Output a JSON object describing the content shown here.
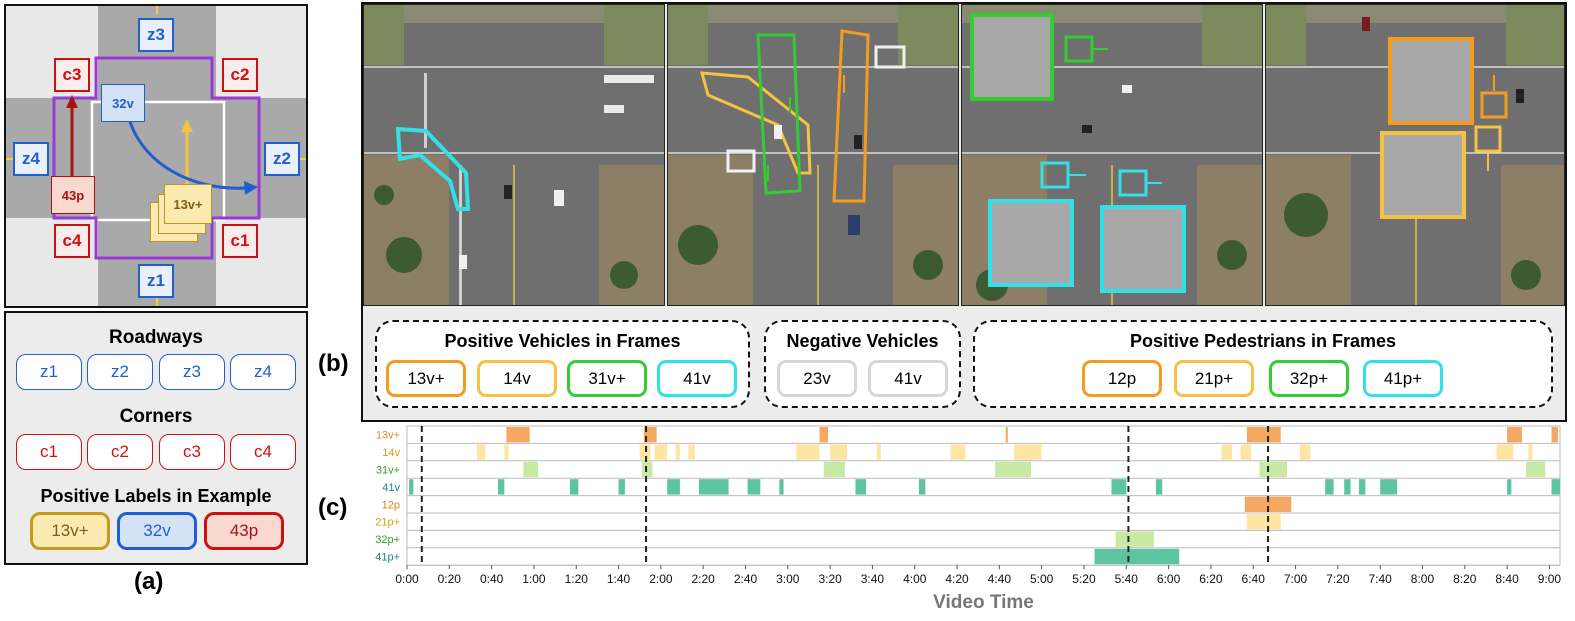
{
  "panel_a": {
    "zones": [
      "z3",
      "z4",
      "z2",
      "z1"
    ],
    "corners": [
      "c3",
      "c2",
      "c4",
      "c1"
    ],
    "marker_32v": "32v",
    "marker_43p": "43p",
    "marker_13v": "13v+",
    "legend": {
      "roadways_title": "Roadways",
      "roadways": [
        "z1",
        "z2",
        "z3",
        "z4"
      ],
      "corners_title": "Corners",
      "corners": [
        "c1",
        "c2",
        "c3",
        "c4"
      ],
      "positive_title": "Positive Labels in Example",
      "positive": [
        "13v+",
        "32v",
        "43p"
      ]
    },
    "caption": "(a)"
  },
  "panel_b": {
    "caption": "(b)",
    "groups": [
      {
        "title": "Positive Vehicles in Frames",
        "items": [
          {
            "label": "13v+",
            "color": "#f39c1f"
          },
          {
            "label": "14v",
            "color": "#f5c242"
          },
          {
            "label": "31v+",
            "color": "#33cc33"
          },
          {
            "label": "41v",
            "color": "#33e0e8"
          }
        ]
      },
      {
        "title": "Negative Vehicles",
        "items": [
          {
            "label": "23v",
            "color": "#d6d6d6"
          },
          {
            "label": "41v",
            "color": "#d6d6d6"
          }
        ]
      },
      {
        "title": "Positive Pedestrians in Frames",
        "items": [
          {
            "label": "12p",
            "color": "#f39c1f"
          },
          {
            "label": "21p+",
            "color": "#f5c242"
          },
          {
            "label": "32p+",
            "color": "#33cc33"
          },
          {
            "label": "41p+",
            "color": "#33e0e8"
          }
        ]
      }
    ]
  },
  "panel_c": {
    "caption": "(c)",
    "chart_data": {
      "type": "timeline",
      "xlabel": "Video Time",
      "x_ticks": [
        "0:00",
        "0:20",
        "0:40",
        "1:00",
        "1:20",
        "1:40",
        "2:00",
        "2:20",
        "2:40",
        "3:00",
        "3:20",
        "3:40",
        "4:00",
        "4:20",
        "4:40",
        "5:00",
        "5:20",
        "5:40",
        "6:00",
        "6:20",
        "6:40",
        "7:00",
        "7:20",
        "7:40",
        "8:00",
        "8:20",
        "8:40",
        "9:00"
      ],
      "xlim_seconds": [
        0,
        545
      ],
      "marker_lines_seconds": [
        7,
        113,
        341,
        407
      ],
      "rows": [
        {
          "name": "13v+",
          "label_color": "#e8841a",
          "bar_color": "#f5a861",
          "segments": [
            [
              47,
              58
            ],
            [
              112,
              118
            ],
            [
              195,
              199
            ],
            [
              283,
              284
            ],
            [
              397,
              413
            ],
            [
              520,
              527
            ],
            [
              541,
              544
            ]
          ]
        },
        {
          "name": "14v",
          "label_color": "#d4a017",
          "bar_color": "#fde5a3",
          "segments": [
            [
              33,
              37
            ],
            [
              46,
              48
            ],
            [
              110,
              115
            ],
            [
              117,
              123
            ],
            [
              127,
              129
            ],
            [
              133,
              136
            ],
            [
              184,
              195
            ],
            [
              200,
              208
            ],
            [
              222,
              224
            ],
            [
              257,
              264
            ],
            [
              287,
              300
            ],
            [
              385,
              390
            ],
            [
              394,
              399
            ],
            [
              422,
              427
            ],
            [
              515,
              523
            ],
            [
              530,
              532
            ]
          ]
        },
        {
          "name": "31v+",
          "label_color": "#3a9e2a",
          "bar_color": "#c8e9a2",
          "segments": [
            [
              55,
              62
            ],
            [
              111,
              116
            ],
            [
              197,
              207
            ],
            [
              278,
              295
            ],
            [
              403,
              416
            ],
            [
              529,
              538
            ]
          ]
        },
        {
          "name": "41v",
          "label_color": "#1a8a7a",
          "bar_color": "#5cc4a0",
          "segments": [
            [
              1,
              3
            ],
            [
              43,
              46
            ],
            [
              77,
              81
            ],
            [
              100,
              103
            ],
            [
              123,
              129
            ],
            [
              138,
              152
            ],
            [
              161,
              167
            ],
            [
              176,
              178
            ],
            [
              212,
              217
            ],
            [
              242,
              245
            ],
            [
              333,
              340
            ],
            [
              354,
              357
            ],
            [
              434,
              438
            ],
            [
              443,
              446
            ],
            [
              450,
              453
            ],
            [
              460,
              468
            ],
            [
              520,
              522
            ],
            [
              541,
              545
            ]
          ]
        },
        {
          "name": "12p",
          "label_color": "#e8841a",
          "bar_color": "#f5a861",
          "segments": [
            [
              396,
              418
            ]
          ]
        },
        {
          "name": "21p+",
          "label_color": "#d4a017",
          "bar_color": "#fde5a3",
          "segments": [
            [
              397,
              413
            ]
          ]
        },
        {
          "name": "32p+",
          "label_color": "#3a9e2a",
          "bar_color": "#c8e9a2",
          "segments": [
            [
              335,
              353
            ]
          ]
        },
        {
          "name": "41p+",
          "label_color": "#1a8a7a",
          "bar_color": "#5cc4a0",
          "segments": [
            [
              325,
              365
            ]
          ]
        }
      ]
    }
  }
}
